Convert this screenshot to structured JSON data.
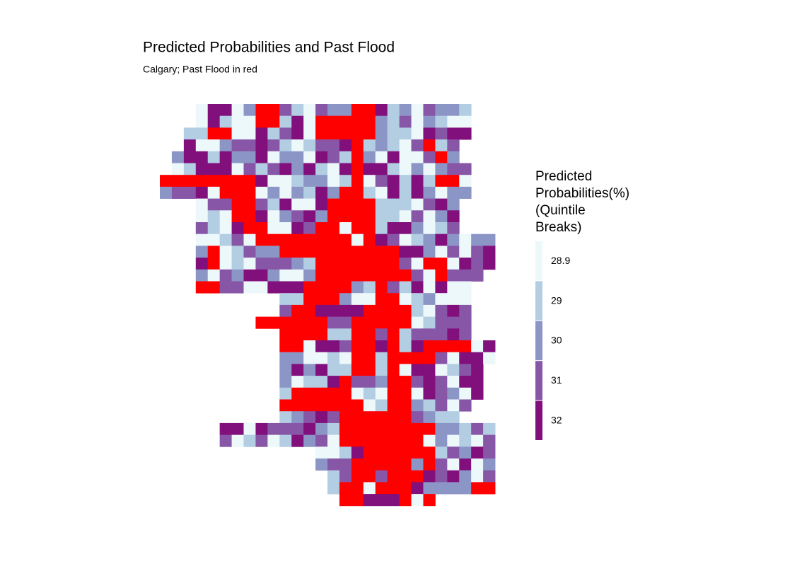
{
  "map": {
    "title": "Predicted Probabilities and Past Flood",
    "subtitle": "Calgary; Past Flood in red",
    "legend": {
      "title": [
        "Predicted",
        "Probabilities(%)",
        "(Quintile",
        "Breaks)"
      ],
      "labels": [
        "28.9",
        "29",
        "30",
        "31",
        "32"
      ],
      "colors": [
        "#edf8fb",
        "#b3cde3",
        "#8c96c6",
        "#8856a7",
        "#810f7c"
      ]
    },
    "flood_color": "#ff0000",
    "grid": {
      "rows": [
        "...04402RR310322RR41203221..",
        "...04100RR140RRRRR21302100..",
        "..11RR0041340RRRRR21104344..",
        "..40023343101334R12103R13...",
        ".244142240220431R204003R2...",
        ".014440313424104R441020233..",
        "RRRRRRRR40012201R034141RR0..",
        "23340RRR0202142RR104142022..",
        "...033RR314004RRRR1110342...",
        "...010RR402342RRRR1103024...",
        "...3104RR0043RR0RR1442013...",
        "...00130RRRRRRRR0R4301242022",
        "...2R01322RRRRRRRRRR44203034",
        "...4R01033321RRRRRRR30RR0434",
        "...2032442002RRRRRRRR30R333.",
        "...RR3300444RRRR21R3140400..",
        "..........11RRR200RR012000..",
        "..........3RR4444RRRR10343..",
        "........RRRRRR33RRRRR01333..",
        "..........RRRR11RR3R133343..",
        "..........RR0443RR4R14RRRR04",
        "..........220010RR1RRRR30440",
        "..........242411RR1R0440134.",
        "..........20114R332RR343044.",
        "..........1RRRRR010RR043204.",
        "..........RRRRRRR01RR21303..",
        "..........12343RRRRRR3211...",
        ".....4404333421RRRRRRRR22131",
        ".....3013014230RRRRRRR020103",
        ".............0014RRRRRR13243",
        ".............233RRRRR2R30402",
        "..............13RR3RRR434203",
        "..............1RR0RRR42222RR",
        "...............RR444R0R....."
      ]
    }
  }
}
